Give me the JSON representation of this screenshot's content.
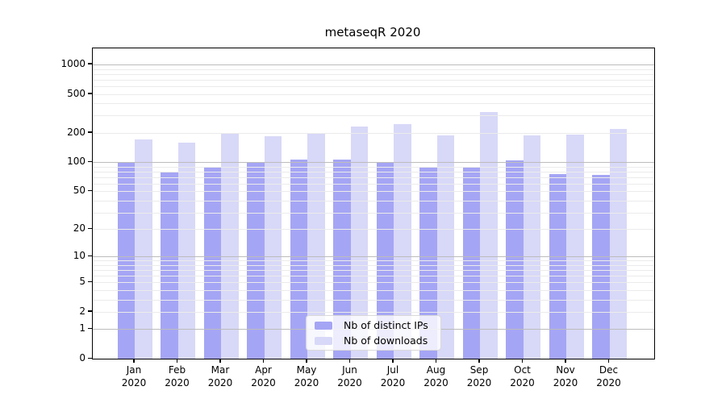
{
  "title": "metaseqR 2020",
  "chart_data": {
    "type": "bar",
    "title": "metaseqR 2020",
    "categories": [
      "Jan",
      "Feb",
      "Mar",
      "Apr",
      "May",
      "Jun",
      "Jul",
      "Aug",
      "Sep",
      "Oct",
      "Nov",
      "Dec"
    ],
    "category_year_line": "2020",
    "series": [
      {
        "name": "Nb of distinct IPs",
        "color": "#a5a5f5",
        "values": [
          100,
          78,
          87,
          100,
          107,
          107,
          100,
          89,
          89,
          104,
          76,
          74
        ]
      },
      {
        "name": "Nb of downloads",
        "color": "#d8d8f8",
        "values": [
          170,
          159,
          196,
          185,
          200,
          232,
          245,
          188,
          325,
          188,
          193,
          219
        ]
      }
    ],
    "y_ticks": [
      0,
      1,
      2,
      5,
      10,
      20,
      50,
      100,
      200,
      500,
      1000
    ],
    "scale": "log1p",
    "ylim": [
      0,
      1460
    ],
    "grid": "minor+major horizontal",
    "legend_position": "bottom-center",
    "colors": {
      "minor_grid": "#ebebeb",
      "major_grid": "#bcbcbc",
      "axis": "#000000",
      "background": "#ffffff"
    }
  }
}
